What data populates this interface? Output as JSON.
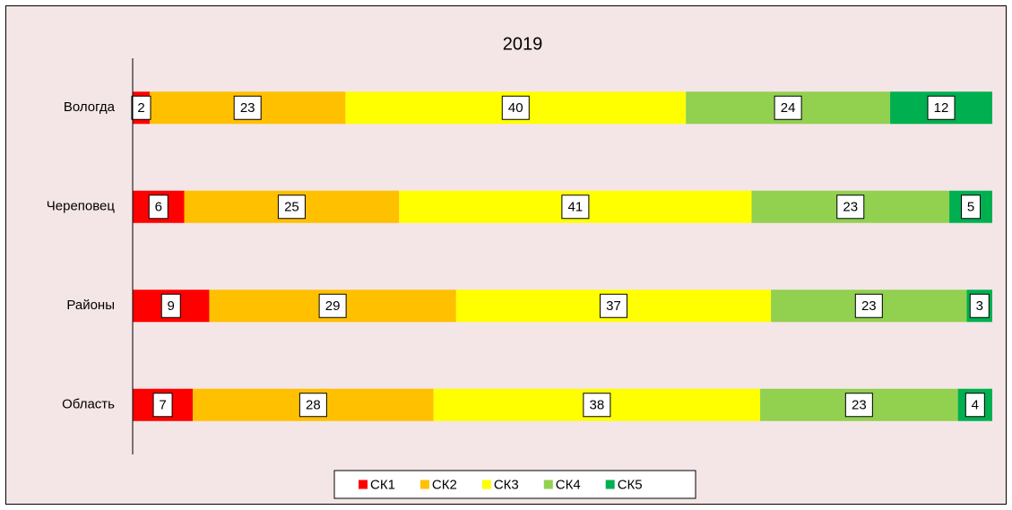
{
  "chart_data": {
    "type": "bar",
    "orientation": "horizontal",
    "stacking": "percent",
    "title": "2019",
    "categories": [
      "Вологда",
      "Череповец",
      "Районы",
      "Область"
    ],
    "series": [
      {
        "name": "СК1",
        "color": "#ff0000",
        "values": [
          2,
          6,
          9,
          7
        ]
      },
      {
        "name": "СК2",
        "color": "#ffc000",
        "values": [
          23,
          25,
          29,
          28
        ]
      },
      {
        "name": "СК3",
        "color": "#ffff00",
        "values": [
          40,
          41,
          37,
          38
        ]
      },
      {
        "name": "СК4",
        "color": "#92d050",
        "values": [
          24,
          23,
          23,
          23
        ]
      },
      {
        "name": "СК5",
        "color": "#00b050",
        "values": [
          12,
          5,
          3,
          4
        ]
      }
    ],
    "legend": "bottom"
  }
}
